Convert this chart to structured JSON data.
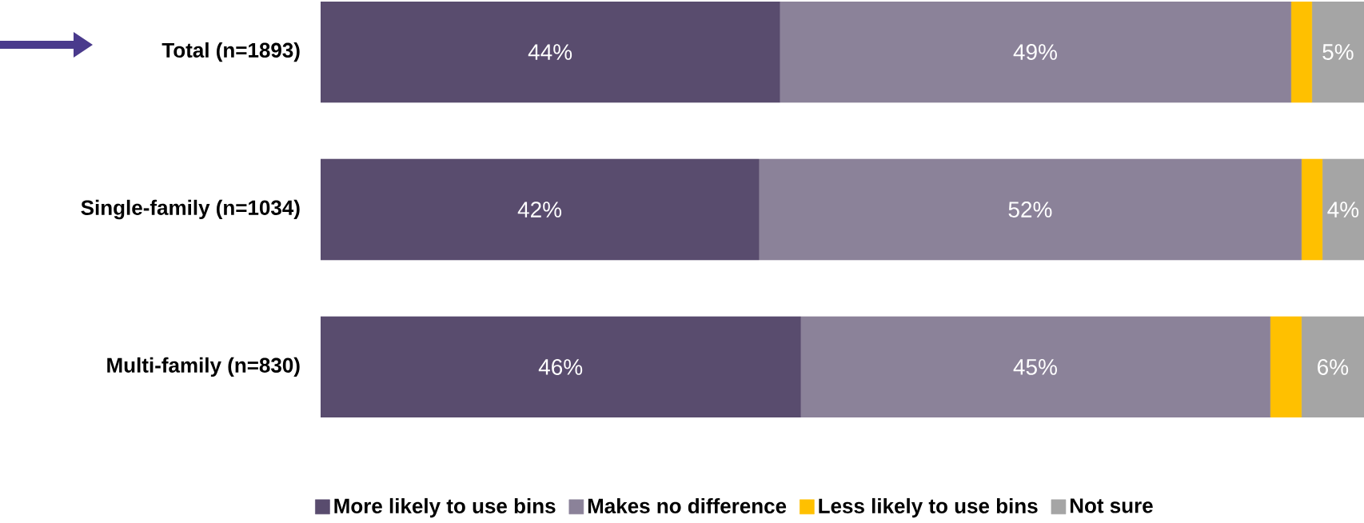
{
  "chart_data": {
    "type": "bar",
    "orientation": "horizontal",
    "stacked": true,
    "categories": [
      "Total (n=1893)",
      "Single-family (n=1034)",
      "Multi-family (n=830)"
    ],
    "series": [
      {
        "name": "More likely to use bins",
        "color": "#594c6e",
        "values": [
          44,
          42,
          46
        ],
        "value_labels": [
          "44%",
          "42%",
          "46%"
        ]
      },
      {
        "name": "Makes no difference",
        "color": "#8b8299",
        "values": [
          49,
          52,
          45
        ],
        "value_labels": [
          "49%",
          "52%",
          "45%"
        ]
      },
      {
        "name": "Less likely to use bins",
        "color": "#ffc000",
        "values": [
          2,
          2,
          3
        ],
        "value_labels": [
          null,
          null,
          null
        ]
      },
      {
        "name": "Not sure",
        "color": "#a5a5a5",
        "values": [
          5,
          4,
          6
        ],
        "value_labels": [
          "5%",
          "4%",
          "6%"
        ]
      }
    ],
    "xlim": [
      0,
      100
    ],
    "legend": "bottom",
    "tick_labels": "y"
  }
}
